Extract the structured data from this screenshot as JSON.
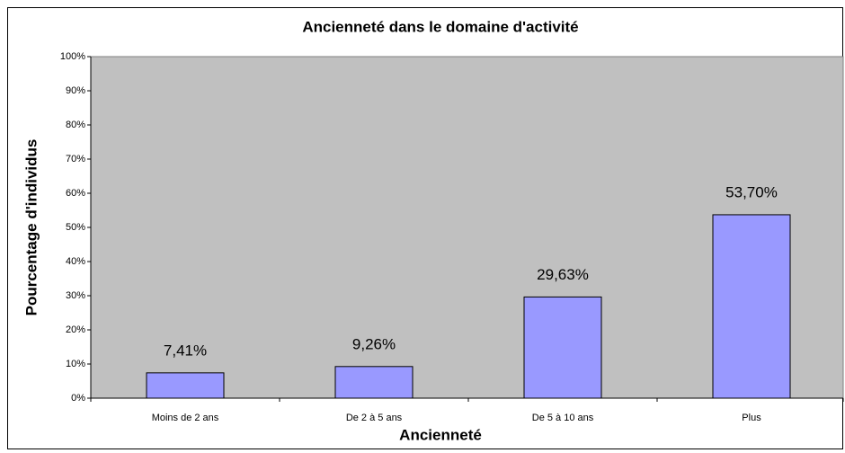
{
  "chart_data": {
    "type": "bar",
    "title": "Ancienneté dans le domaine d'activité",
    "x_label": "Ancienneté",
    "y_label": "Pourcentage d'individus",
    "categories": [
      "Moins de 2 ans",
      "De 2 à 5 ans",
      "De 5 à 10 ans",
      "Plus"
    ],
    "values": [
      7.41,
      9.26,
      29.63,
      53.7
    ],
    "value_labels": [
      "7,41%",
      "9,26%",
      "29,63%",
      "53,70%"
    ],
    "color": "#9999ff",
    "ylim": [
      0,
      100
    ],
    "yticks": [
      {
        "value": 0,
        "label": "0%"
      },
      {
        "value": 10,
        "label": "10%"
      },
      {
        "value": 20,
        "label": "20%"
      },
      {
        "value": 30,
        "label": "30%"
      },
      {
        "value": 40,
        "label": "40%"
      },
      {
        "value": 50,
        "label": "50%"
      },
      {
        "value": 60,
        "label": "60%"
      },
      {
        "value": 70,
        "label": "70%"
      },
      {
        "value": 80,
        "label": "80%"
      },
      {
        "value": 90,
        "label": "90%"
      },
      {
        "value": 100,
        "label": "100%"
      }
    ],
    "grid": false
  }
}
